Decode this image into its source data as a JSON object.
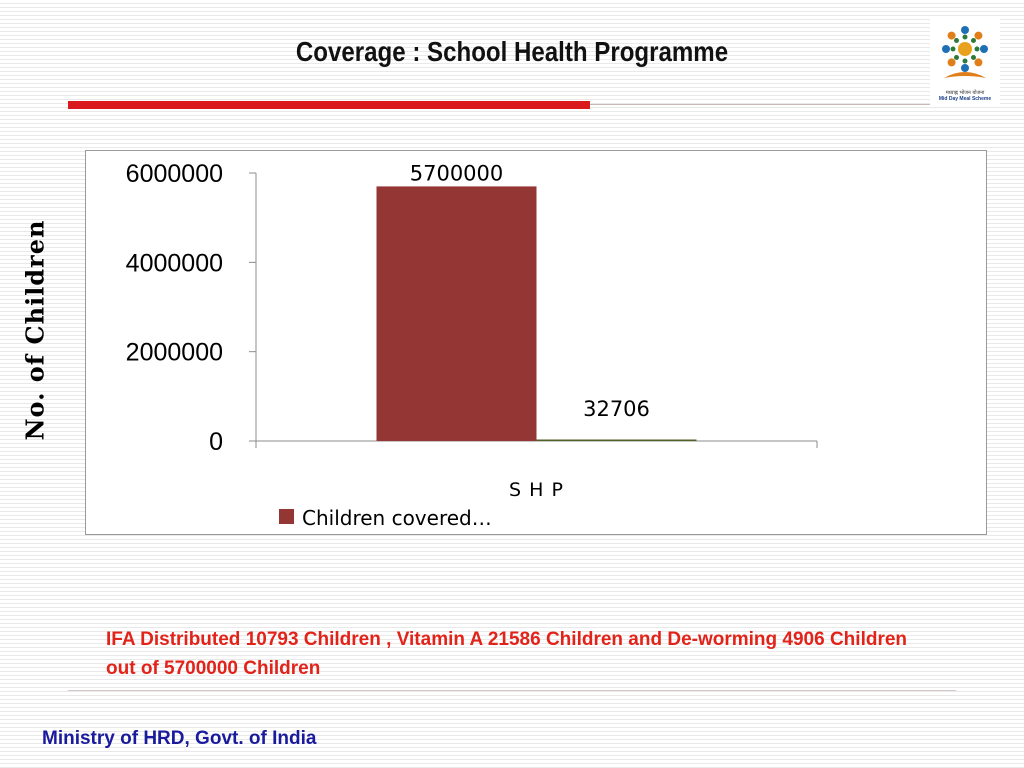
{
  "slide": {
    "title": "Coverage : School Health Programme",
    "y_axis_title": "No. of Children",
    "note": "IFA Distributed  10793 Children , Vitamin A 21586 Children  and De-worming 4906 Children out of 5700000 Children",
    "footer": "Ministry of HRD, Govt. of India",
    "logo": {
      "icon": "mid-day-meal-scheme-logo",
      "hindi_text": "मध्याह्न भोजन योजना",
      "english_text": "Mid Day Meal Scheme"
    }
  },
  "colors": {
    "title_rule": "#d9191c",
    "bar": "#943634",
    "note_text": "#e2231a",
    "footer_text": "#1a1a9c"
  },
  "chart_data": {
    "type": "bar",
    "categories": [
      "S H P"
    ],
    "series": [
      {
        "name": "Children covered",
        "values": [
          5700000
        ],
        "color": "#943634",
        "data_labels": [
          "5700000"
        ]
      },
      {
        "name": "",
        "values": [
          32706
        ],
        "color": "#4f6228",
        "data_labels": [
          "32706"
        ]
      }
    ],
    "legend": {
      "entries": [
        "Children covered…"
      ],
      "position": "bottom"
    },
    "ylim": [
      0,
      6000000
    ],
    "yticks": [
      0,
      2000000,
      4000000,
      6000000
    ],
    "ytick_labels": [
      "0",
      "2000000",
      "4000000",
      "6000000"
    ],
    "grid": false,
    "xlabel": "",
    "ylabel": "No. of Children"
  }
}
